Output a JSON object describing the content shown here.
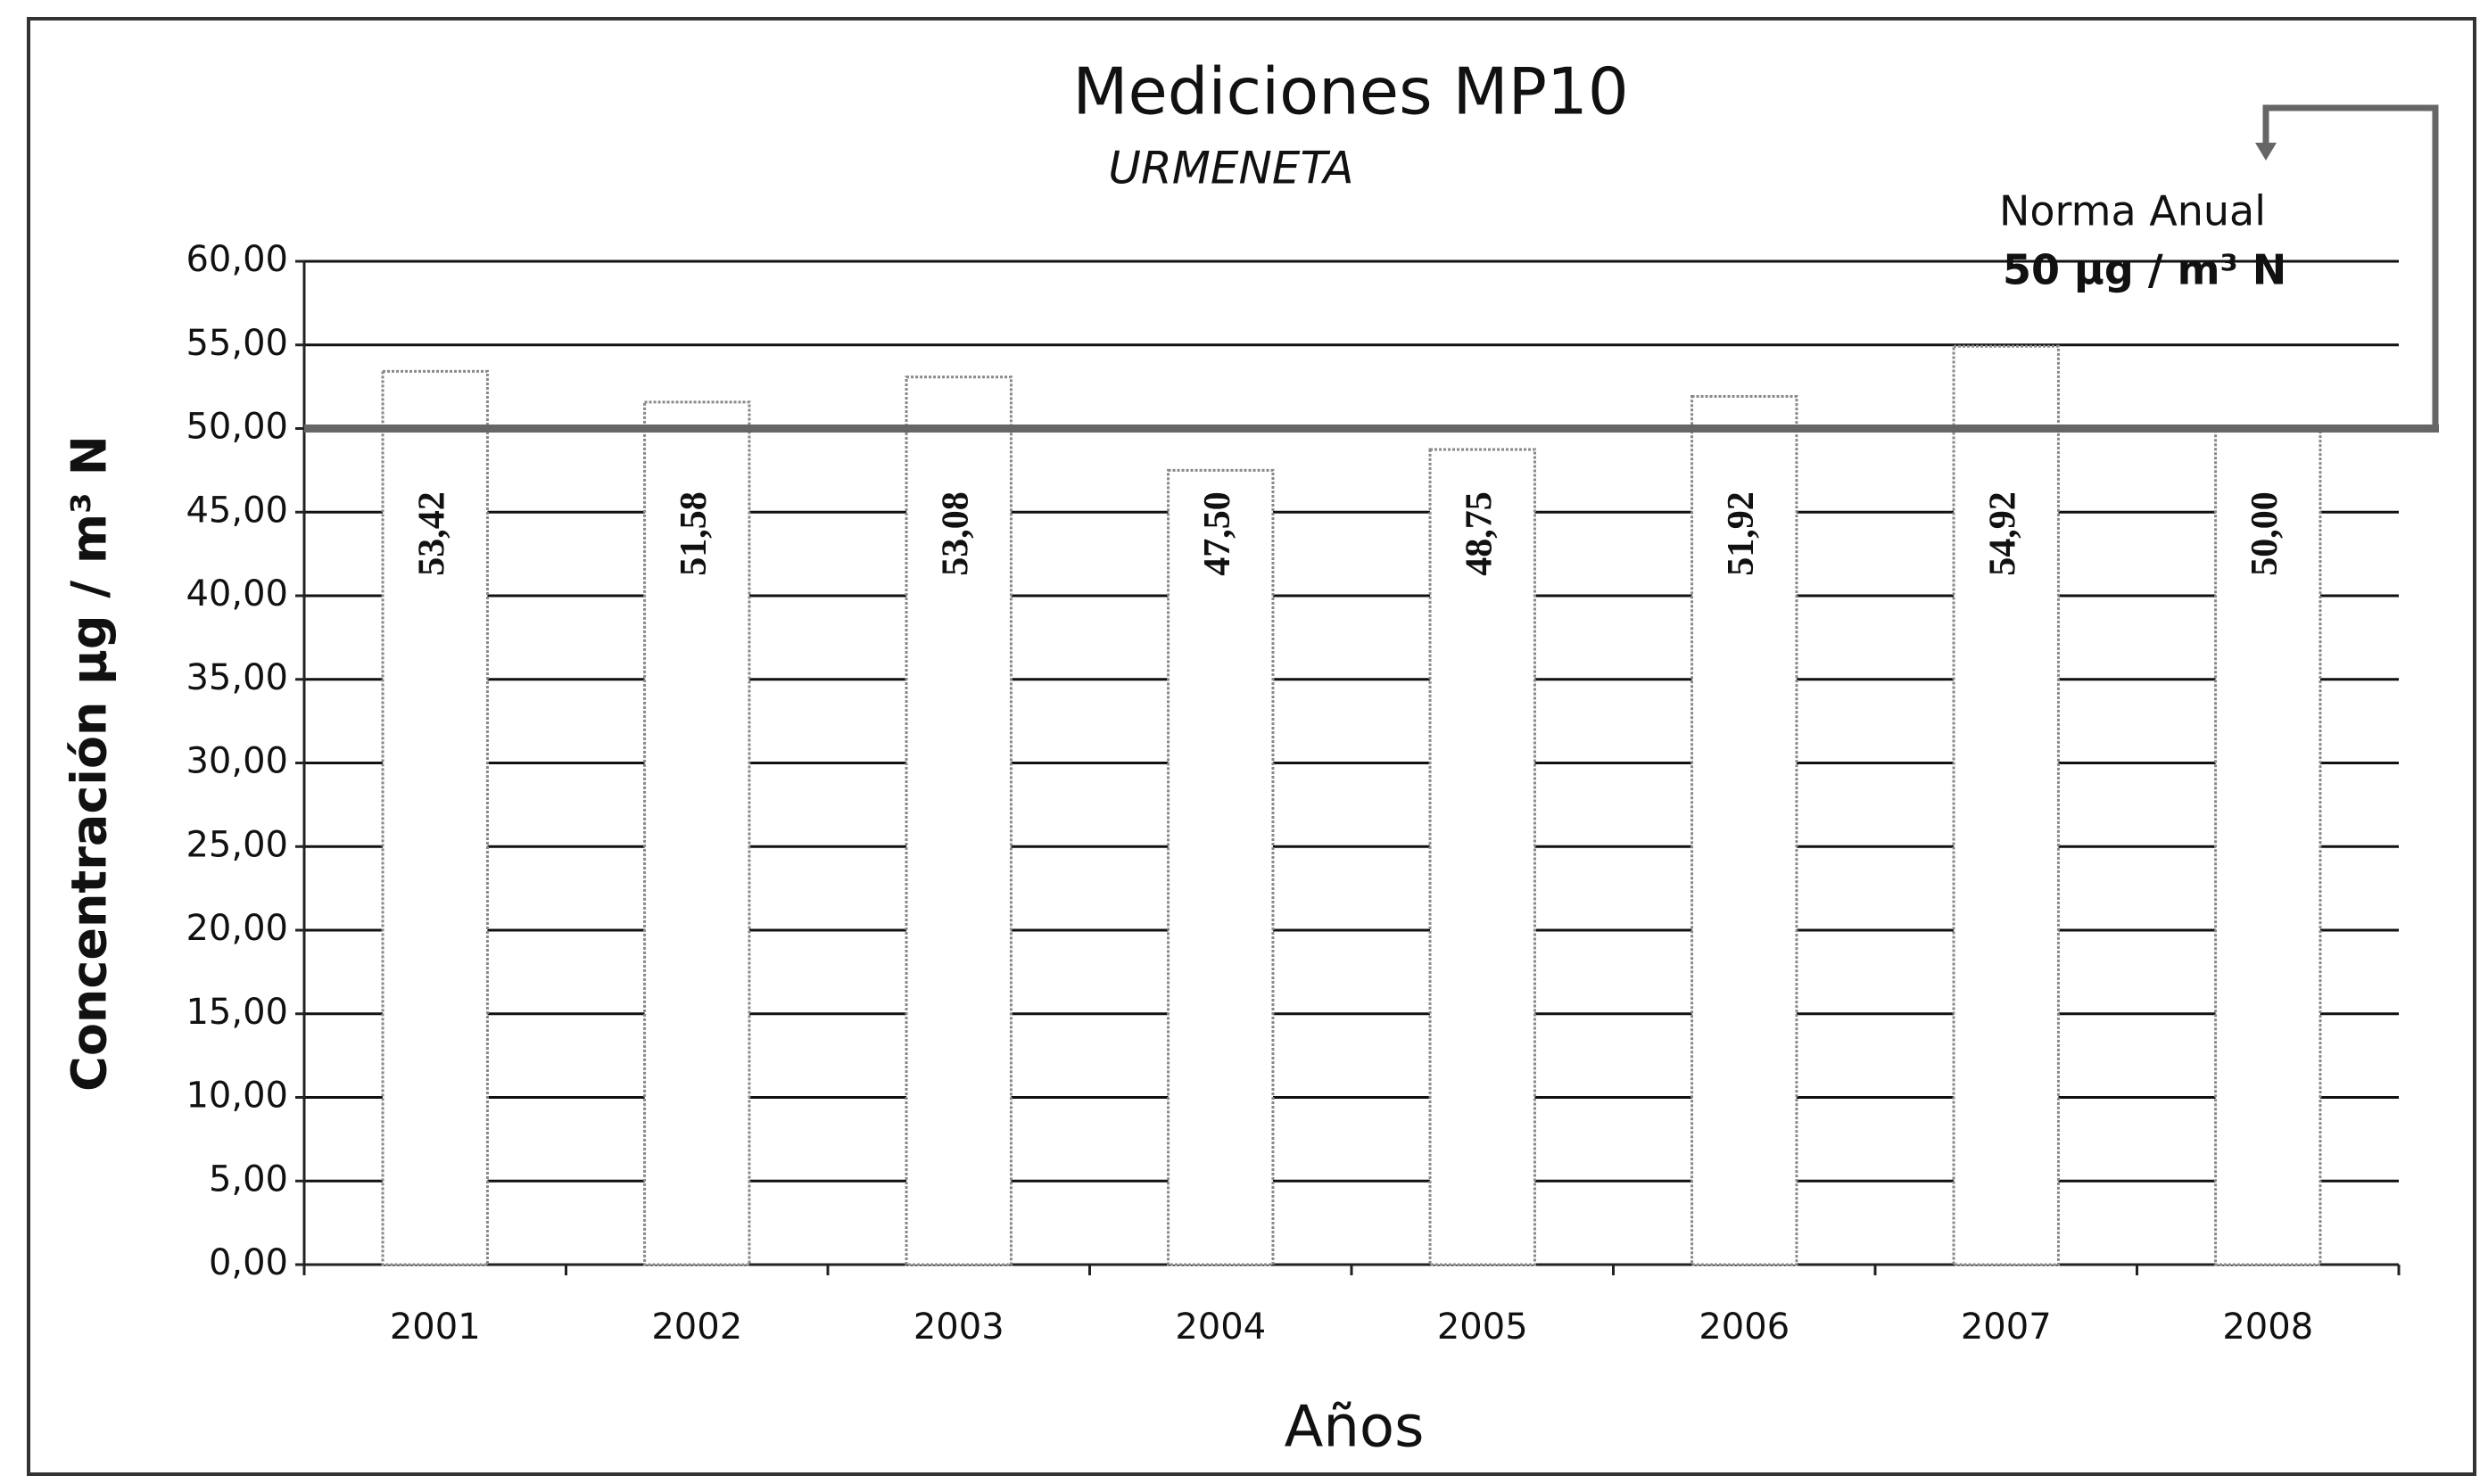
{
  "chart_data": {
    "type": "bar",
    "title": "Mediciones MP10",
    "subtitle": "URMENETA",
    "x_label": "Años",
    "y_label": "Concentración µg / m³ N",
    "categories": [
      "2001",
      "2002",
      "2003",
      "2004",
      "2005",
      "2006",
      "2007",
      "2008"
    ],
    "values": [
      53.42,
      51.58,
      53.08,
      47.5,
      48.75,
      51.92,
      54.92,
      50.0
    ],
    "value_labels": [
      "53,42",
      "51,58",
      "53,08",
      "47,50",
      "48,75",
      "51,92",
      "54,92",
      "50,00"
    ],
    "color": "#ffffff",
    "ylim": [
      0,
      60
    ],
    "yticks": [
      {
        "value": 0,
        "label": "0,00"
      },
      {
        "value": 5,
        "label": "5,00"
      },
      {
        "value": 10,
        "label": "10,00"
      },
      {
        "value": 15,
        "label": "15,00"
      },
      {
        "value": 20,
        "label": "20,00"
      },
      {
        "value": 25,
        "label": "25,00"
      },
      {
        "value": 30,
        "label": "30,00"
      },
      {
        "value": 35,
        "label": "35,00"
      },
      {
        "value": 40,
        "label": "40,00"
      },
      {
        "value": 45,
        "label": "45,00"
      },
      {
        "value": 50,
        "label": "50,00"
      },
      {
        "value": 55,
        "label": "55,00"
      },
      {
        "value": 60,
        "label": "60,00"
      }
    ],
    "grid": true,
    "threshold": 50,
    "annotation": {
      "title": "Norma Anual",
      "text": "50 µg / m³ N"
    }
  }
}
